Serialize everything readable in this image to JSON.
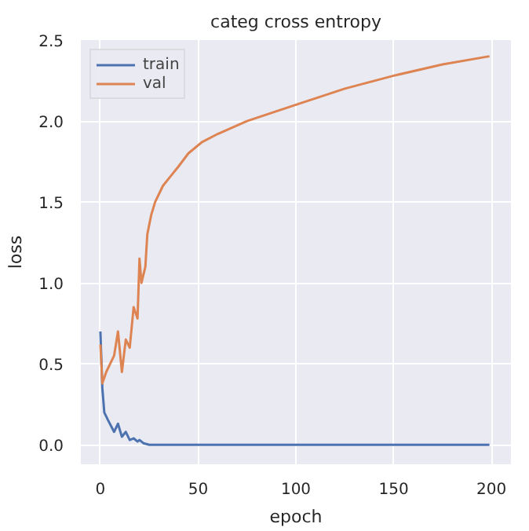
{
  "chart_data": {
    "type": "line",
    "title": "categ cross entropy",
    "xlabel": "epoch",
    "ylabel": "loss",
    "xlim": [
      -10,
      210
    ],
    "ylim": [
      -0.12,
      2.5
    ],
    "xticks": [
      0,
      50,
      100,
      150,
      200
    ],
    "yticks": [
      {
        "value": 0,
        "label": "0.0"
      },
      0.5,
      {
        "value": 1,
        "label": "1.0"
      },
      1.5,
      {
        "value": 2,
        "label": "2.0"
      },
      2.5
    ],
    "grid": true,
    "legend": "top left",
    "series": [
      {
        "name": "train",
        "color": "#4c72b0",
        "x": [
          0,
          1,
          2,
          4,
          7,
          9,
          11,
          13,
          15,
          17,
          19,
          20,
          22,
          25,
          50,
          100,
          150,
          199
        ],
        "values": [
          0.7,
          0.35,
          0.2,
          0.15,
          0.08,
          0.13,
          0.05,
          0.08,
          0.03,
          0.04,
          0.02,
          0.03,
          0.01,
          0.0,
          0.0,
          0.0,
          0.0,
          0.0
        ]
      },
      {
        "name": "val",
        "color": "#dd8452",
        "x": [
          0,
          1,
          3,
          5,
          7,
          9,
          11,
          13,
          15,
          17,
          19,
          20,
          21,
          23,
          24,
          26,
          28,
          32,
          36,
          40,
          45,
          52,
          60,
          75,
          100,
          125,
          150,
          175,
          199
        ],
        "values": [
          0.62,
          0.38,
          0.45,
          0.5,
          0.55,
          0.7,
          0.45,
          0.65,
          0.6,
          0.85,
          0.78,
          1.15,
          1.0,
          1.1,
          1.3,
          1.42,
          1.5,
          1.6,
          1.66,
          1.72,
          1.8,
          1.87,
          1.92,
          2.0,
          2.1,
          2.2,
          2.28,
          2.35,
          2.4
        ]
      }
    ]
  }
}
